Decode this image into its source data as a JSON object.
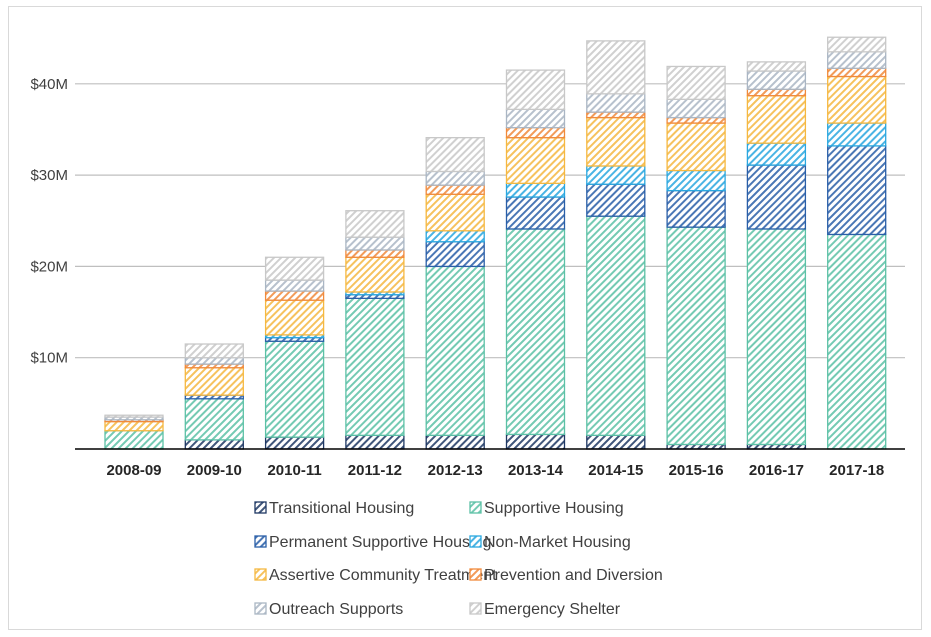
{
  "chart_data": {
    "type": "bar",
    "stacked": true,
    "categories": [
      "2008-09",
      "2009-10",
      "2010-11",
      "2011-12",
      "2012-13",
      "2013-14",
      "2014-15",
      "2015-16",
      "2016-17",
      "2017-18"
    ],
    "y_ticks": [
      "$10M",
      "$20M",
      "$30M",
      "$40M"
    ],
    "y_tick_values": [
      10,
      20,
      30,
      40
    ],
    "ylim": [
      0,
      45
    ],
    "grid": true,
    "legend_position": "bottom",
    "series": [
      {
        "name": "Transitional Housing",
        "color": "#1F3864",
        "values": [
          0,
          1.0,
          1.3,
          1.5,
          1.5,
          1.6,
          1.5,
          0.5,
          0.5,
          0
        ]
      },
      {
        "name": "Supportive Housing",
        "color": "#5CC1A6",
        "values": [
          2.0,
          4.5,
          10.5,
          15.0,
          18.5,
          22.5,
          24.0,
          23.8,
          23.6,
          23.5
        ]
      },
      {
        "name": "Permanent Supportive Housing",
        "color": "#2A5FA8",
        "values": [
          0,
          0.4,
          0.4,
          0.4,
          2.7,
          3.5,
          3.5,
          4.0,
          7.0,
          9.7
        ]
      },
      {
        "name": "Non-Market Housing",
        "color": "#2AA7DF",
        "values": [
          0,
          0,
          0.3,
          0.3,
          1.2,
          1.5,
          2.0,
          2.2,
          2.4,
          2.5
        ]
      },
      {
        "name": "Assertive Community Treatment",
        "color": "#F5B841",
        "values": [
          1.0,
          3.0,
          3.8,
          3.8,
          4.0,
          5.0,
          5.3,
          5.2,
          5.2,
          5.1
        ]
      },
      {
        "name": "Prevention and Diversion",
        "color": "#F08A3C",
        "values": [
          0.2,
          0.4,
          1.0,
          0.8,
          1.0,
          1.1,
          0.6,
          0.6,
          0.7,
          0.9
        ]
      },
      {
        "name": "Outreach Supports",
        "color": "#AAB6C4",
        "values": [
          0.3,
          0.7,
          1.2,
          1.4,
          1.5,
          2.0,
          2.0,
          2.0,
          2.0,
          1.8
        ]
      },
      {
        "name": "Emergency Shelter",
        "color": "#C8C8C8",
        "values": [
          0.2,
          1.5,
          2.5,
          2.9,
          3.7,
          4.3,
          5.8,
          3.6,
          1.0,
          1.6
        ]
      }
    ]
  }
}
